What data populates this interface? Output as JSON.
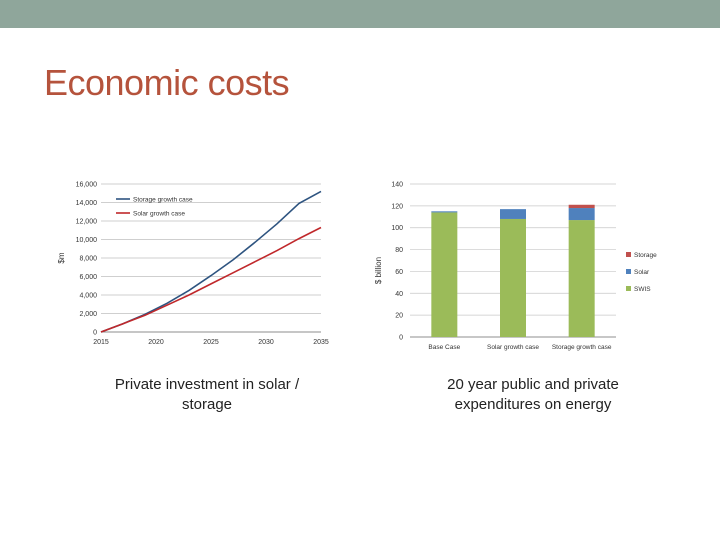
{
  "slide": {
    "title": "Economic costs",
    "top_bar_color": "#8fa69b",
    "title_color": "#b5533c"
  },
  "captions": {
    "left": "Private investment in solar / storage",
    "right": "20 year public and private expenditures on energy"
  },
  "chart_data": [
    {
      "type": "line",
      "title": "",
      "xlabel": "",
      "ylabel": "$m",
      "xlim": [
        2015,
        2035
      ],
      "ylim": [
        0,
        16000
      ],
      "x_ticks": [
        "2015",
        "2020",
        "2025",
        "2030",
        "2035"
      ],
      "y_ticks": [
        "0",
        "2,000",
        "4,000",
        "6,000",
        "8,000",
        "10,000",
        "12,000",
        "14,000",
        "16,000"
      ],
      "grid": true,
      "legend_position": "top-left",
      "x": [
        2015,
        2017,
        2019,
        2021,
        2023,
        2025,
        2027,
        2029,
        2031,
        2033,
        2035
      ],
      "series": [
        {
          "name": "Storage growth case",
          "color": "#2e5480",
          "values": [
            0,
            900,
            1900,
            3100,
            4500,
            6100,
            7800,
            9700,
            11700,
            13900,
            15200
          ]
        },
        {
          "name": "Solar growth case",
          "color": "#c0282b",
          "values": [
            0,
            900,
            1800,
            2900,
            4000,
            5200,
            6400,
            7600,
            8800,
            10100,
            11300
          ]
        }
      ]
    },
    {
      "type": "bar",
      "stacked": true,
      "title": "",
      "xlabel": "",
      "ylabel": "$ billion",
      "ylim": [
        0,
        140
      ],
      "y_ticks": [
        "0",
        "20",
        "40",
        "60",
        "80",
        "100",
        "120",
        "140"
      ],
      "grid": true,
      "legend_position": "right",
      "categories": [
        "Base Case",
        "Solar growth case",
        "Storage growth case"
      ],
      "series": [
        {
          "name": "SWIS",
          "color": "#9bbb59",
          "values": [
            114,
            108,
            107
          ]
        },
        {
          "name": "Solar",
          "color": "#4f81bd",
          "values": [
            1,
            9,
            11
          ]
        },
        {
          "name": "Storage",
          "color": "#c0504d",
          "values": [
            0,
            0,
            3
          ]
        }
      ]
    }
  ]
}
